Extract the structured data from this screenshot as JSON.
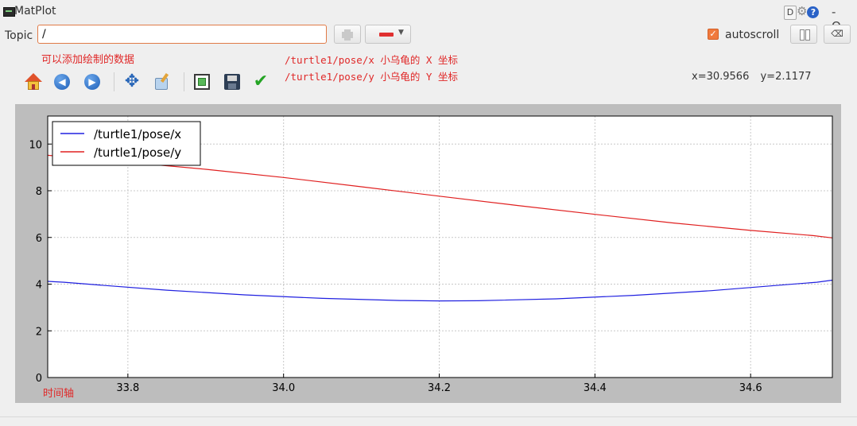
{
  "window": {
    "title": "MatPlot",
    "header_icons": {
      "d_label": "D",
      "gear_icon": "gear-icon",
      "help_icon": "help-icon",
      "help_glyph": "?"
    },
    "controls": "- O"
  },
  "topic": {
    "label": "Topic",
    "value": "/",
    "add_icon": "plus-icon",
    "remove_icon": "minus-icon"
  },
  "autoscroll": {
    "label": "autoscroll",
    "checked": true
  },
  "buttons": {
    "pause_icon": "pause-icon",
    "clear_glyph": "⌫"
  },
  "annotations": {
    "add_hint": "可以添加绘制的数据",
    "topic_x": "/turtle1/pose/x 小乌龟的 X 坐标",
    "topic_y": "/turtle1/pose/y 小乌龟的 Y 坐标",
    "time_axis": "时间轴"
  },
  "toolbar": {
    "icons": [
      "home-icon",
      "back-icon",
      "forward-icon",
      "pan-icon",
      "zoom-icon",
      "configure-icon",
      "save-icon",
      "check-icon"
    ]
  },
  "coords": "x=30.9566 y=2.1177",
  "colors": {
    "accent": "#f07a3e",
    "series_x": "#2020e0",
    "series_y": "#e02020",
    "annotation": "#e02828"
  },
  "chart_data": {
    "type": "line",
    "xlim": [
      33.697,
      34.705
    ],
    "ylim": [
      0,
      11.2
    ],
    "xticks": [
      33.8,
      34.0,
      34.2,
      34.4,
      34.6
    ],
    "yticks": [
      0,
      2,
      4,
      6,
      8,
      10
    ],
    "grid": true,
    "legend_position": "upper-left",
    "series": [
      {
        "name": "/turtle1/pose/x",
        "color": "#2020e0",
        "x": [
          33.697,
          33.718,
          33.76,
          33.85,
          33.95,
          34.05,
          34.15,
          34.2,
          34.25,
          34.35,
          34.45,
          34.55,
          34.65,
          34.685,
          34.705
        ],
        "y": [
          4.12,
          4.08,
          3.97,
          3.74,
          3.54,
          3.39,
          3.3,
          3.28,
          3.29,
          3.37,
          3.52,
          3.72,
          3.99,
          4.08,
          4.17
        ]
      },
      {
        "name": "/turtle1/pose/y",
        "color": "#e02020",
        "x": [
          33.697,
          33.75,
          33.8,
          33.9,
          34.0,
          34.1,
          34.2,
          34.3,
          34.4,
          34.5,
          34.6,
          34.68,
          34.705
        ],
        "y": [
          9.52,
          9.37,
          9.22,
          8.92,
          8.57,
          8.17,
          7.77,
          7.37,
          6.99,
          6.62,
          6.3,
          6.08,
          5.98
        ]
      }
    ]
  }
}
